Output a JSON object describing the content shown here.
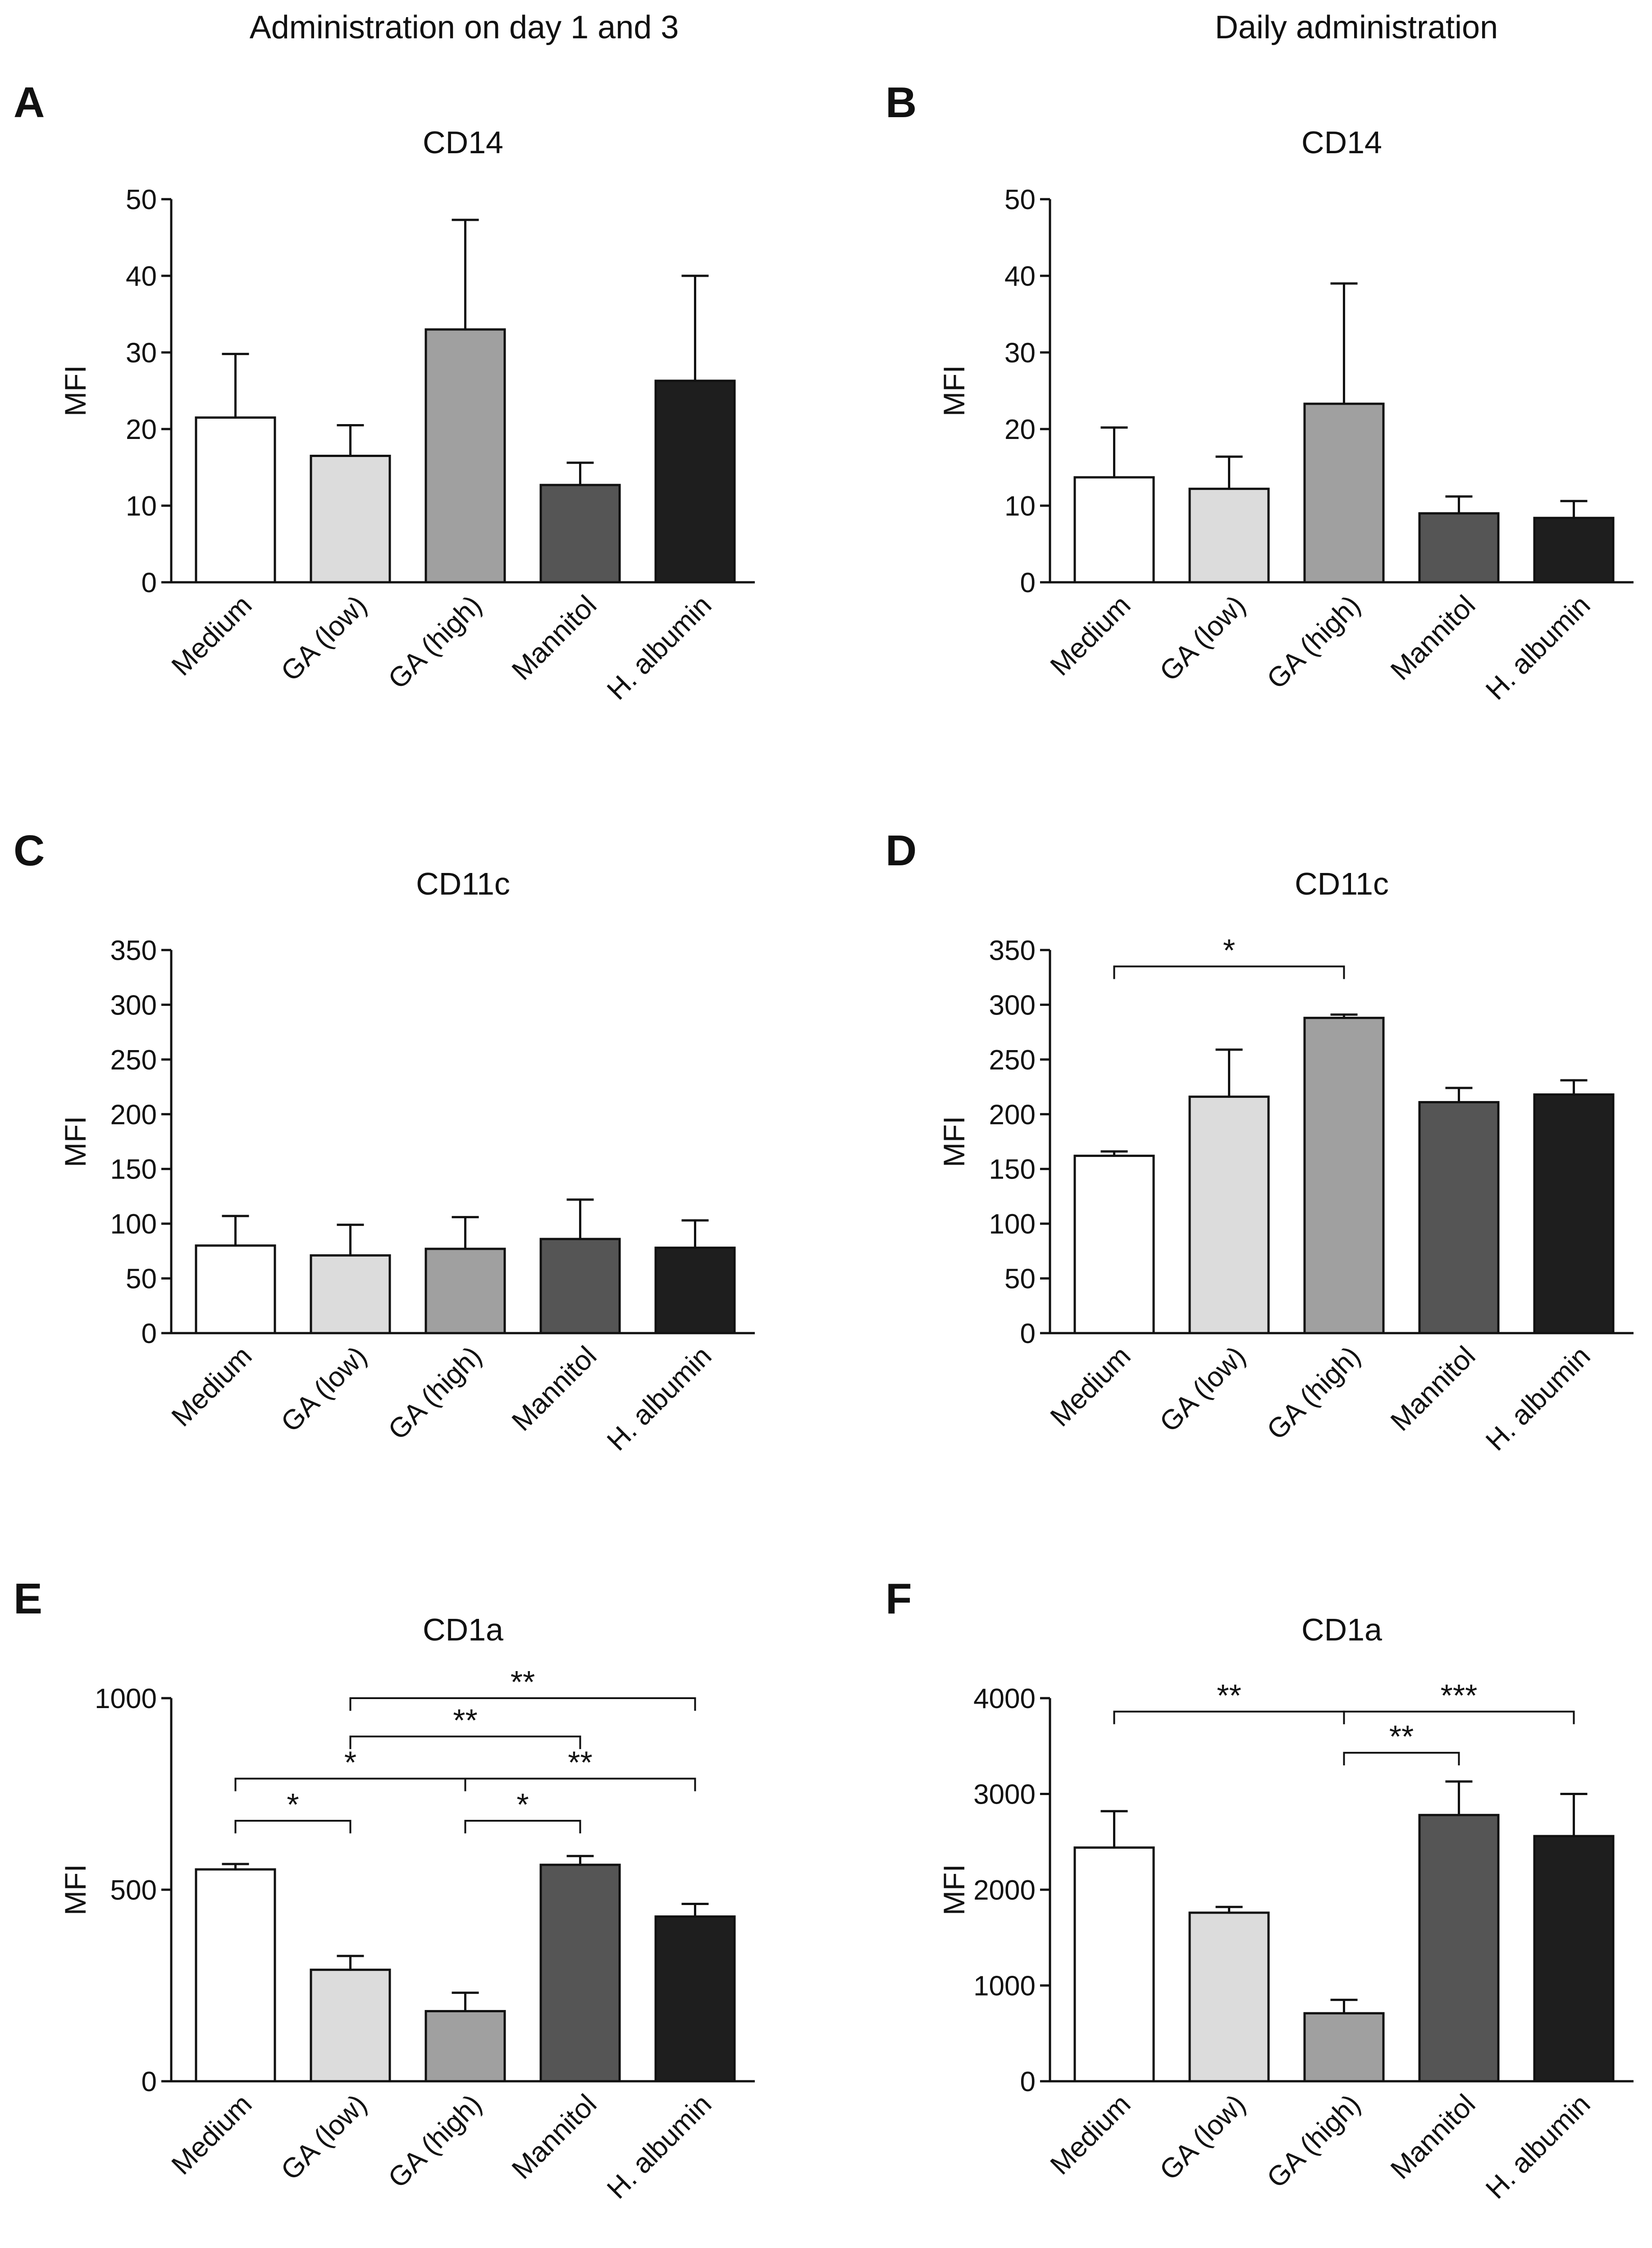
{
  "column_headers": {
    "left": "Administration on day 1 and 3",
    "right": "Daily administration"
  },
  "series_colors": [
    "#ffffff",
    "#dcdcdc",
    "#a0a0a0",
    "#555555",
    "#1e1e1e"
  ],
  "chart_data": [
    {
      "panel": "A",
      "title": "CD14",
      "type": "bar",
      "ylabel": "MFI",
      "categories": [
        "Medium",
        "GA (low)",
        "GA (high)",
        "Mannitol",
        "H. albumin"
      ],
      "values": [
        21.5,
        16.5,
        33,
        12.7,
        26.3
      ],
      "errors": [
        8.3,
        4,
        14.3,
        2.9,
        13.7
      ],
      "ylim": [
        0,
        50
      ],
      "yticks": [
        0,
        10,
        20,
        30,
        40,
        50
      ],
      "rotate_labels": true,
      "significance": []
    },
    {
      "panel": "B",
      "title": "CD14",
      "type": "bar",
      "ylabel": "MFI",
      "categories": [
        "Medium",
        "GA (low)",
        "GA (high)",
        "Mannitol",
        "H. albumin"
      ],
      "values": [
        13.7,
        12.2,
        23.3,
        9,
        8.4
      ],
      "errors": [
        6.5,
        4.2,
        15.7,
        2.2,
        2.2
      ],
      "ylim": [
        0,
        50
      ],
      "yticks": [
        0,
        10,
        20,
        30,
        40,
        50
      ],
      "rotate_labels": true,
      "significance": []
    },
    {
      "panel": "C",
      "title": "CD11c",
      "type": "bar",
      "ylabel": "MFI",
      "categories": [
        "Medium",
        "GA (low)",
        "GA (high)",
        "Mannitol",
        "H. albumin"
      ],
      "values": [
        80,
        71,
        77,
        86,
        78
      ],
      "errors": [
        27,
        28,
        29,
        36,
        25
      ],
      "ylim": [
        0,
        350
      ],
      "yticks": [
        0,
        50,
        100,
        150,
        200,
        250,
        300,
        350
      ],
      "rotate_labels": true,
      "significance": []
    },
    {
      "panel": "D",
      "title": "CD11c",
      "type": "bar",
      "ylabel": "MFI",
      "categories": [
        "Medium",
        "GA (low)",
        "GA (high)",
        "Mannitol",
        "H. albumin"
      ],
      "values": [
        162,
        216,
        288,
        211,
        218
      ],
      "errors": [
        4,
        43,
        3,
        13,
        13
      ],
      "ylim": [
        0,
        350
      ],
      "yticks": [
        0,
        50,
        100,
        150,
        200,
        250,
        300,
        350
      ],
      "rotate_labels": true,
      "significance": [
        {
          "from": 0,
          "to": 2,
          "level": 335,
          "label": "*"
        }
      ]
    },
    {
      "panel": "E",
      "title": "CD1a",
      "type": "bar",
      "ylabel": "MFI",
      "categories": [
        "Medium",
        "GA (low)",
        "GA (high)",
        "Mannitol",
        "H. albumin"
      ],
      "values": [
        553,
        291,
        183,
        565,
        430
      ],
      "errors": [
        14,
        36,
        48,
        23,
        33
      ],
      "ylim": [
        0,
        1000
      ],
      "yticks": [
        0,
        500,
        1000
      ],
      "rotate_labels": true,
      "significance": [
        {
          "from": 0,
          "to": 1,
          "level": 680,
          "label": "*"
        },
        {
          "from": 2,
          "to": 3,
          "level": 680,
          "label": "*"
        },
        {
          "from": 0,
          "to": 2,
          "level": 790,
          "label": "*"
        },
        {
          "from": 2,
          "to": 4,
          "level": 790,
          "label": "**"
        },
        {
          "from": 1,
          "to": 3,
          "level": 900,
          "label": "**"
        },
        {
          "from": 1,
          "to": 4,
          "level": 1000,
          "label": "**"
        }
      ]
    },
    {
      "panel": "F",
      "title": "CD1a",
      "type": "bar",
      "ylabel": "MFI",
      "categories": [
        "Medium",
        "GA (low)",
        "GA (high)",
        "Mannitol",
        "H. albumin"
      ],
      "values": [
        2440,
        1760,
        710,
        2780,
        2560
      ],
      "errors": [
        380,
        60,
        140,
        350,
        440
      ],
      "ylim": [
        0,
        4000
      ],
      "yticks": [
        0,
        1000,
        2000,
        3000,
        4000
      ],
      "rotate_labels": true,
      "significance": [
        {
          "from": 0,
          "to": 2,
          "level": 3860,
          "label": "**"
        },
        {
          "from": 2,
          "to": 4,
          "level": 3860,
          "label": "***"
        },
        {
          "from": 2,
          "to": 3,
          "level": 3430,
          "label": "**"
        }
      ]
    }
  ]
}
